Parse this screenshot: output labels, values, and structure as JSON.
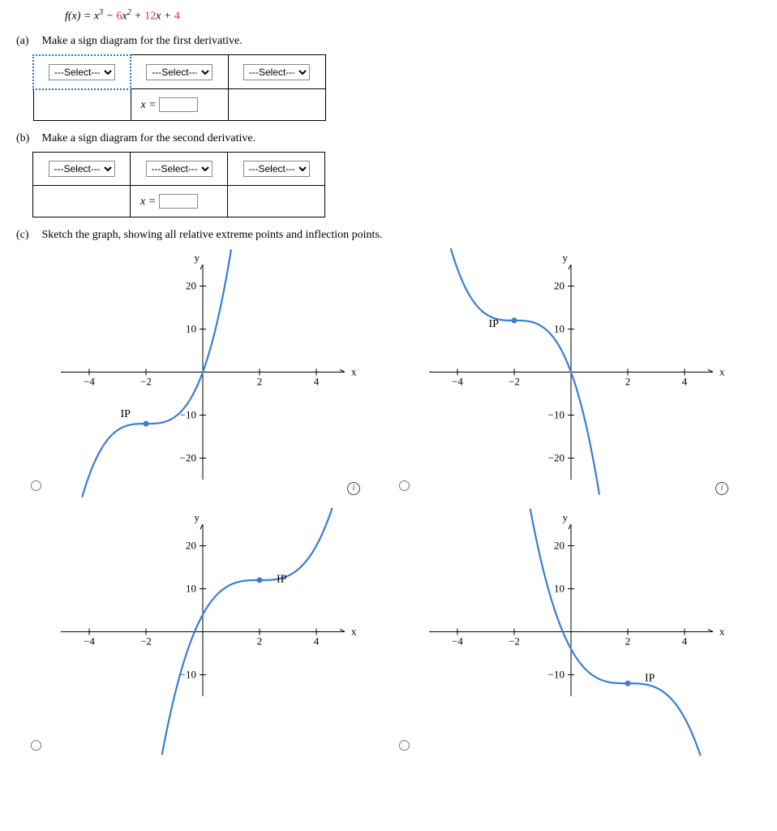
{
  "function": {
    "lhs": "f(x) = ",
    "rhs_parts": [
      "x",
      "3",
      " − ",
      "6",
      "x",
      "2",
      " + ",
      "12",
      "x + ",
      "4"
    ]
  },
  "parts": {
    "a": {
      "label": "(a)",
      "text": "Make a sign diagram for the first derivative."
    },
    "b": {
      "label": "(b)",
      "text": "Make a sign diagram for the second derivative."
    },
    "c": {
      "label": "(c)",
      "text": "Sketch the graph, showing all relative extreme points and inflection points."
    }
  },
  "select_placeholder": "---Select---",
  "x_eq_label": "x =",
  "graphs": {
    "xlim": [
      -5,
      5
    ],
    "ylim": [
      -25,
      25
    ],
    "xticks": [
      -4,
      -2,
      2,
      4
    ],
    "yticks": [
      -20,
      -10,
      10,
      20
    ],
    "xticklabels": [
      "−4",
      "−2",
      "2",
      "4"
    ],
    "yticklabels": [
      "−20",
      "−10",
      "10",
      "20"
    ],
    "x_axis_label": "x",
    "y_axis_label": "y",
    "curve_color": "#3a7dd4",
    "ip_label": "IP",
    "options": [
      {
        "ip_x": -2,
        "ip_y": -12,
        "ip_label_at": [
          -2.9,
          -10.5
        ],
        "curve": "g1"
      },
      {
        "ip_x": -2,
        "ip_y": 12,
        "ip_label_at": [
          -2.9,
          10.5
        ],
        "curve": "g2"
      },
      {
        "ip_x": 2,
        "ip_y": 12,
        "ip_label_at": [
          2.6,
          11.5
        ],
        "curve": "g3"
      },
      {
        "ip_x": 2,
        "ip_y": -12,
        "ip_label_at": [
          2.6,
          -11.5
        ],
        "curve": "g4"
      }
    ]
  }
}
